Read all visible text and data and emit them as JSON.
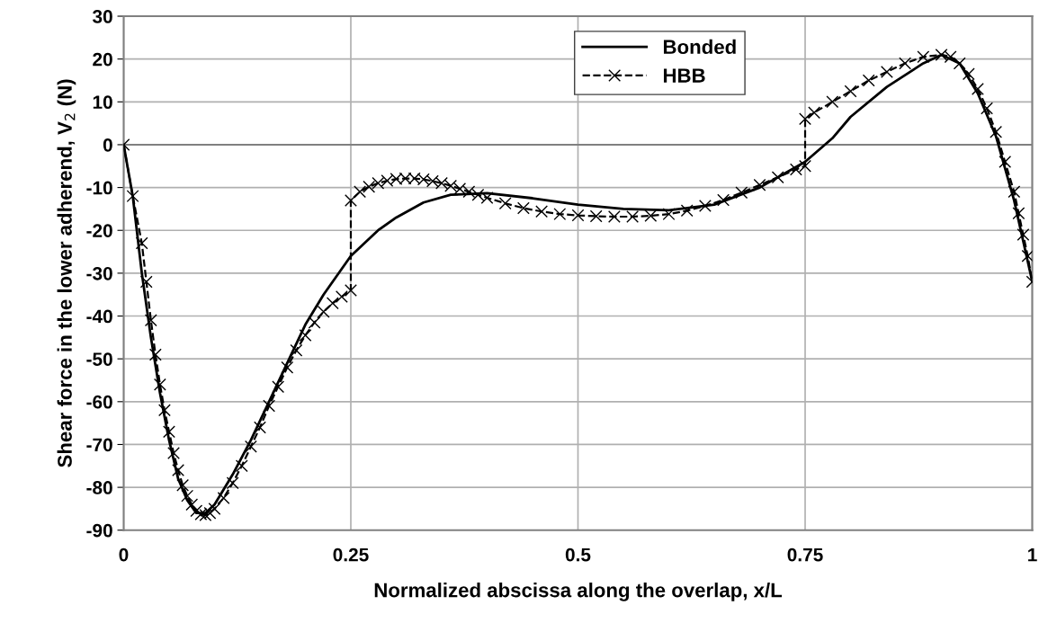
{
  "chart_data": {
    "type": "line",
    "xlabel": "Normalized abscissa along the overlap, x/L",
    "ylabel": "Shear force in the lower adherend, V$_{2}$ (N)",
    "xlim": [
      0,
      1
    ],
    "xticks": [
      0,
      0.25,
      0.5,
      0.75,
      1
    ],
    "ylim": [
      -90,
      30
    ],
    "yticks": [
      -90,
      -80,
      -70,
      -60,
      -50,
      -40,
      -30,
      -20,
      -10,
      0,
      10,
      20,
      30
    ],
    "grid": true,
    "legend": "top",
    "ref_lines": [
      {
        "axis": "y",
        "value": 0,
        "color": "#808080"
      }
    ],
    "series": [
      {
        "name": "Bonded",
        "color": "#000000",
        "line_style": "solid",
        "marker": "none",
        "x": [
          0,
          0.01,
          0.02,
          0.03,
          0.04,
          0.05,
          0.06,
          0.07,
          0.08,
          0.09,
          0.1,
          0.12,
          0.14,
          0.16,
          0.18,
          0.2,
          0.22,
          0.25,
          0.28,
          0.3,
          0.33,
          0.36,
          0.4,
          0.45,
          0.5,
          0.55,
          0.6,
          0.65,
          0.7,
          0.75,
          0.78,
          0.8,
          0.84,
          0.88,
          0.9,
          0.92,
          0.94,
          0.96,
          0.98,
          1
        ],
        "values": [
          0,
          -12,
          -30,
          -45,
          -58,
          -69,
          -78,
          -83,
          -86,
          -86,
          -84,
          -77,
          -69,
          -60,
          -51,
          -42,
          -35,
          -26,
          -20,
          -17,
          -13.5,
          -11.7,
          -11.3,
          -12.5,
          -14,
          -15,
          -15.3,
          -14,
          -10,
          -4,
          1.5,
          6.5,
          13.5,
          19,
          21,
          19,
          12,
          2,
          -13,
          -32
        ]
      },
      {
        "name": "HBB",
        "color": "#000000",
        "line_style": "dashed",
        "marker": "cross",
        "x": [
          0,
          0.01,
          0.02,
          0.025,
          0.03,
          0.035,
          0.04,
          0.045,
          0.05,
          0.055,
          0.06,
          0.065,
          0.07,
          0.075,
          0.08,
          0.085,
          0.09,
          0.095,
          0.1,
          0.11,
          0.12,
          0.13,
          0.14,
          0.15,
          0.16,
          0.17,
          0.18,
          0.19,
          0.2,
          0.21,
          0.22,
          0.23,
          0.24,
          0.25,
          0.25,
          0.26,
          0.27,
          0.28,
          0.29,
          0.3,
          0.31,
          0.32,
          0.33,
          0.34,
          0.35,
          0.36,
          0.37,
          0.38,
          0.39,
          0.4,
          0.42,
          0.44,
          0.46,
          0.48,
          0.5,
          0.52,
          0.54,
          0.56,
          0.58,
          0.6,
          0.62,
          0.64,
          0.66,
          0.68,
          0.7,
          0.72,
          0.74,
          0.75,
          0.75,
          0.76,
          0.78,
          0.8,
          0.82,
          0.84,
          0.86,
          0.88,
          0.9,
          0.91,
          0.92,
          0.93,
          0.94,
          0.95,
          0.96,
          0.97,
          0.98,
          0.985,
          0.99,
          0.995,
          1
        ],
        "values": [
          0,
          -12,
          -23,
          -32,
          -41,
          -49,
          -56,
          -62,
          -67,
          -72,
          -76,
          -79.5,
          -82,
          -84,
          -85.5,
          -86.3,
          -86.5,
          -86,
          -85,
          -82.5,
          -79,
          -75,
          -70.5,
          -66,
          -61,
          -56.5,
          -52,
          -48,
          -44.5,
          -41.5,
          -39,
          -37,
          -35.5,
          -34,
          -13,
          -11,
          -9.8,
          -9,
          -8.4,
          -8,
          -7.9,
          -7.9,
          -8.1,
          -8.5,
          -9,
          -9.6,
          -10.3,
          -11,
          -11.7,
          -12.4,
          -13.7,
          -14.8,
          -15.6,
          -16.2,
          -16.5,
          -16.7,
          -16.8,
          -16.8,
          -16.6,
          -16.2,
          -15.4,
          -14.3,
          -12.9,
          -11.2,
          -9.4,
          -7.6,
          -5.8,
          -5,
          6,
          7.5,
          10,
          12.5,
          15,
          17,
          19,
          20.5,
          21,
          20.5,
          19,
          16.5,
          13,
          8.5,
          3,
          -4,
          -11,
          -16,
          -21,
          -26,
          -32
        ]
      }
    ]
  }
}
